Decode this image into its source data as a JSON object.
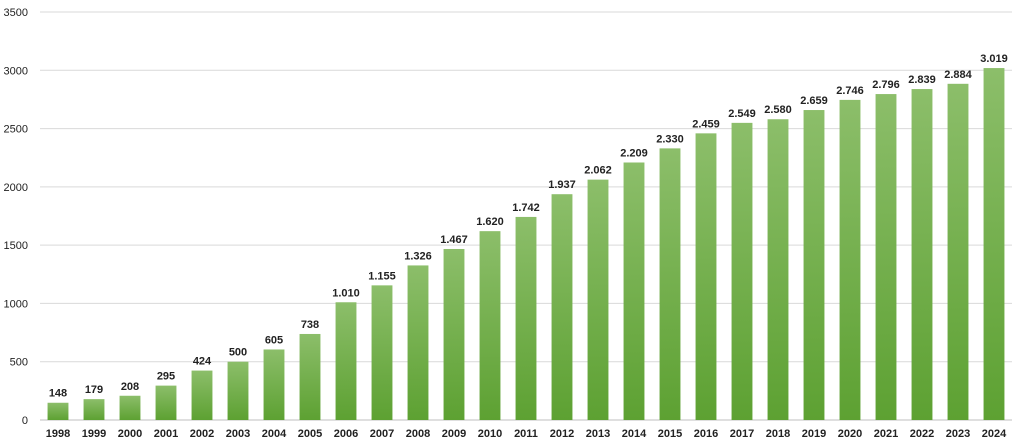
{
  "chart_data": {
    "type": "bar",
    "title": "",
    "xlabel": "",
    "ylabel": "",
    "ylim": [
      0,
      3500
    ],
    "yticks": [
      0,
      500,
      1000,
      1500,
      2000,
      2500,
      3000,
      3500
    ],
    "grid": true,
    "legend": "none",
    "categories": [
      "1998",
      "1999",
      "2000",
      "2001",
      "2002",
      "2003",
      "2004",
      "2005",
      "2006",
      "2007",
      "2008",
      "2009",
      "2010",
      "2011",
      "2012",
      "2013",
      "2014",
      "2015",
      "2016",
      "2017",
      "2018",
      "2019",
      "2020",
      "2021",
      "2022",
      "2023",
      "2024"
    ],
    "values": [
      148,
      179,
      208,
      295,
      424,
      500,
      605,
      738,
      1010,
      1155,
      1326,
      1467,
      1620,
      1742,
      1937,
      2062,
      2209,
      2330,
      2459,
      2549,
      2580,
      2659,
      2746,
      2796,
      2839,
      2884,
      3019
    ],
    "data_labels": [
      "148",
      "179",
      "208",
      "295",
      "424",
      "500",
      "605",
      "738",
      "1.010",
      "1.155",
      "1.326",
      "1.467",
      "1.620",
      "1.742",
      "1.937",
      "2.062",
      "2.209",
      "2.330",
      "2.459",
      "2.549",
      "2.580",
      "2.659",
      "2.746",
      "2.796",
      "2.839",
      "2.884",
      "3.019"
    ],
    "colors": {
      "bar_top": "#8cbe6a",
      "bar_bottom": "#5da132",
      "grid": "#d9d9d9",
      "axis": "#bfbfbf"
    }
  }
}
